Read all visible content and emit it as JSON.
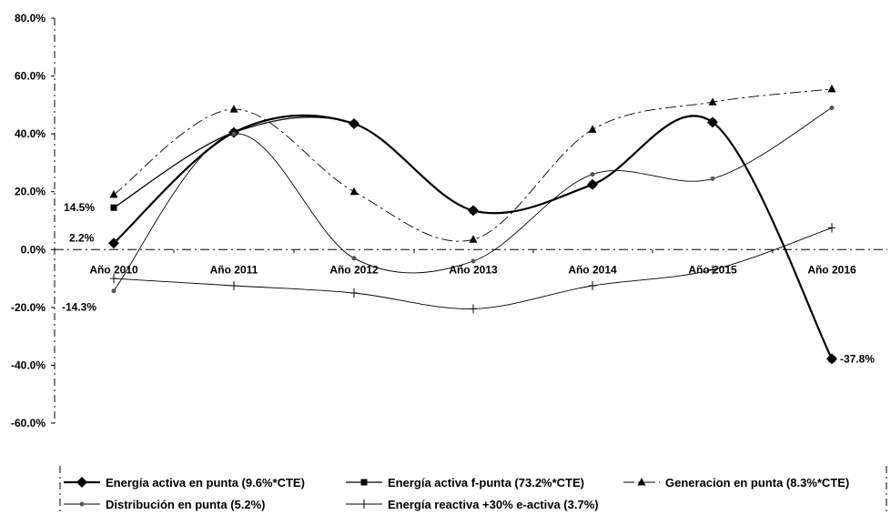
{
  "chart_data": {
    "type": "line",
    "title": "",
    "xlabel": "",
    "ylabel": "",
    "categories": [
      "Año 2010",
      "Año 2011",
      "Año 2012",
      "Año 2013",
      "Año 2014",
      "Año 2015",
      "Año 2016"
    ],
    "ylim": [
      -60,
      80
    ],
    "yticks": [
      80,
      60,
      40,
      20,
      0,
      -20,
      -40,
      -60
    ],
    "ytick_labels": [
      "80.0%",
      "60.0%",
      "40.0%",
      "20.0%",
      "0.0%",
      "-20.0%",
      "-40.0%",
      "-60.0%"
    ],
    "legend_position": "bottom",
    "grid": false,
    "series": [
      {
        "name": "Energía activa en punta (9.6%*CTE)",
        "marker": "diamond",
        "color": "#000000",
        "values": [
          2.2,
          40.5,
          43.5,
          13.5,
          22.5,
          44.0,
          -37.8
        ]
      },
      {
        "name": "Energía activa f-punta (73.2%*CTE)",
        "marker": "square",
        "color": "#000000",
        "values": [
          14.5,
          40.5,
          43.5,
          13.5,
          22.5,
          44.0,
          -37.8
        ]
      },
      {
        "name": "Generacion en punta (8.3%*CTE)",
        "marker": "triangle",
        "color": "#000000",
        "values": [
          19.0,
          48.5,
          20.0,
          3.5,
          41.5,
          51.0,
          55.5
        ]
      },
      {
        "name": "Distribución en punta (5.2%)",
        "marker": "star",
        "color": "#000000",
        "values": [
          -14.3,
          40.0,
          -3.0,
          -4.0,
          26.0,
          24.5,
          49.0
        ]
      },
      {
        "name": "Energía reactiva +30% e-activa (3.7%)",
        "marker": "plus",
        "color": "#000000",
        "values": [
          -10.0,
          -12.5,
          -15.0,
          -20.5,
          -12.5,
          -7.0,
          7.5
        ]
      }
    ],
    "annotations": [
      "14.5%",
      "2.2%",
      "-14.3%",
      "-37.8%"
    ]
  }
}
